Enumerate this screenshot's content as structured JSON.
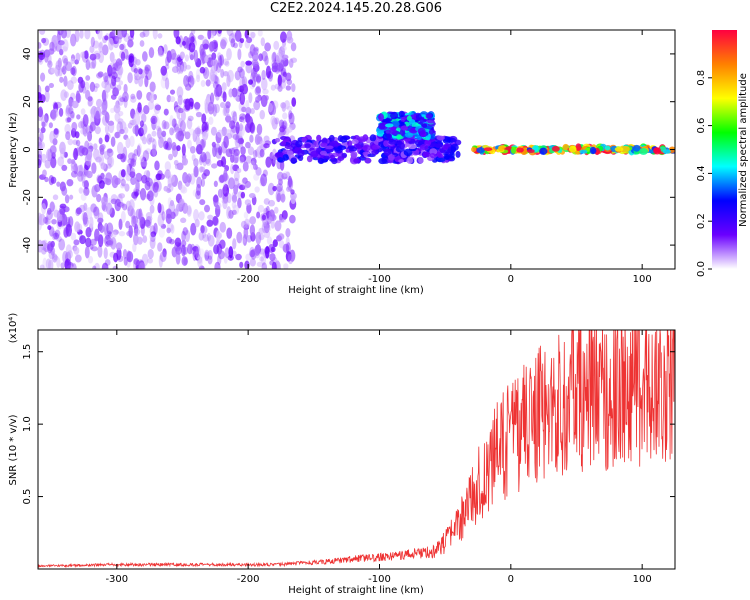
{
  "title": "C2E2.2024.145.20.28.G06",
  "chart_data": [
    {
      "type": "heatmap",
      "title": "",
      "xlabel": "Height of straight line (km)",
      "ylabel": "Frequency (Hz)",
      "xlim": [
        -360,
        125
      ],
      "ylim": [
        -50,
        50
      ],
      "xticks": [
        -300,
        -200,
        -100,
        0,
        100
      ],
      "yticks": [
        -40,
        -20,
        0,
        20,
        40
      ],
      "colorbar": {
        "label": "Normalized spectral amplitude",
        "range": [
          0,
          1
        ],
        "ticks": [
          "0.0",
          "0.2",
          "0.4",
          "0.6",
          "0.8"
        ],
        "colors": [
          "#ffffff",
          "#6a00ff",
          "#0000ff",
          "#00ffff",
          "#00ff00",
          "#ffff00",
          "#ff8000",
          "#ff0040"
        ]
      },
      "regions": [
        {
          "x_range": [
            -360,
            -165
          ],
          "f_range": [
            -50,
            50
          ],
          "amplitude": 0.05,
          "description_key": "noise"
        },
        {
          "x_range": [
            -180,
            -40
          ],
          "f_center": 0,
          "f_width": 10,
          "amplitude": 0.25
        },
        {
          "x_range": [
            -100,
            -60
          ],
          "f_center": 10,
          "f_width": 10,
          "amplitude": 0.4
        },
        {
          "x_range": [
            -30,
            125
          ],
          "f_center": 0,
          "f_width": 2,
          "amplitude": 0.95
        }
      ]
    },
    {
      "type": "line",
      "title": "",
      "xlabel": "Height of straight line (km)",
      "ylabel": "SNR (10 * v/v)",
      "y_multiplier_label": "(x10⁴)",
      "xlim": [
        -360,
        125
      ],
      "ylim": [
        0,
        1.65
      ],
      "xticks": [
        -300,
        -200,
        -100,
        0,
        100
      ],
      "yticks": [
        "0.5",
        "1.0",
        "1.5"
      ],
      "color": "#ee3333",
      "x": [
        -360,
        -300,
        -250,
        -200,
        -180,
        -140,
        -120,
        -100,
        -80,
        -60,
        -50,
        -40,
        -30,
        -20,
        -10,
        0,
        10,
        20,
        30,
        40,
        50,
        60,
        70,
        80,
        90,
        100,
        110,
        120,
        125
      ],
      "series": [
        {
          "values": [
            0.02,
            0.03,
            0.03,
            0.03,
            0.03,
            0.05,
            0.07,
            0.08,
            0.1,
            0.12,
            0.18,
            0.3,
            0.5,
            0.65,
            0.8,
            0.9,
            1.0,
            1.05,
            1.1,
            1.15,
            1.2,
            1.2,
            1.22,
            1.22,
            1.25,
            1.25,
            1.25,
            1.25,
            1.25
          ]
        }
      ]
    }
  ]
}
